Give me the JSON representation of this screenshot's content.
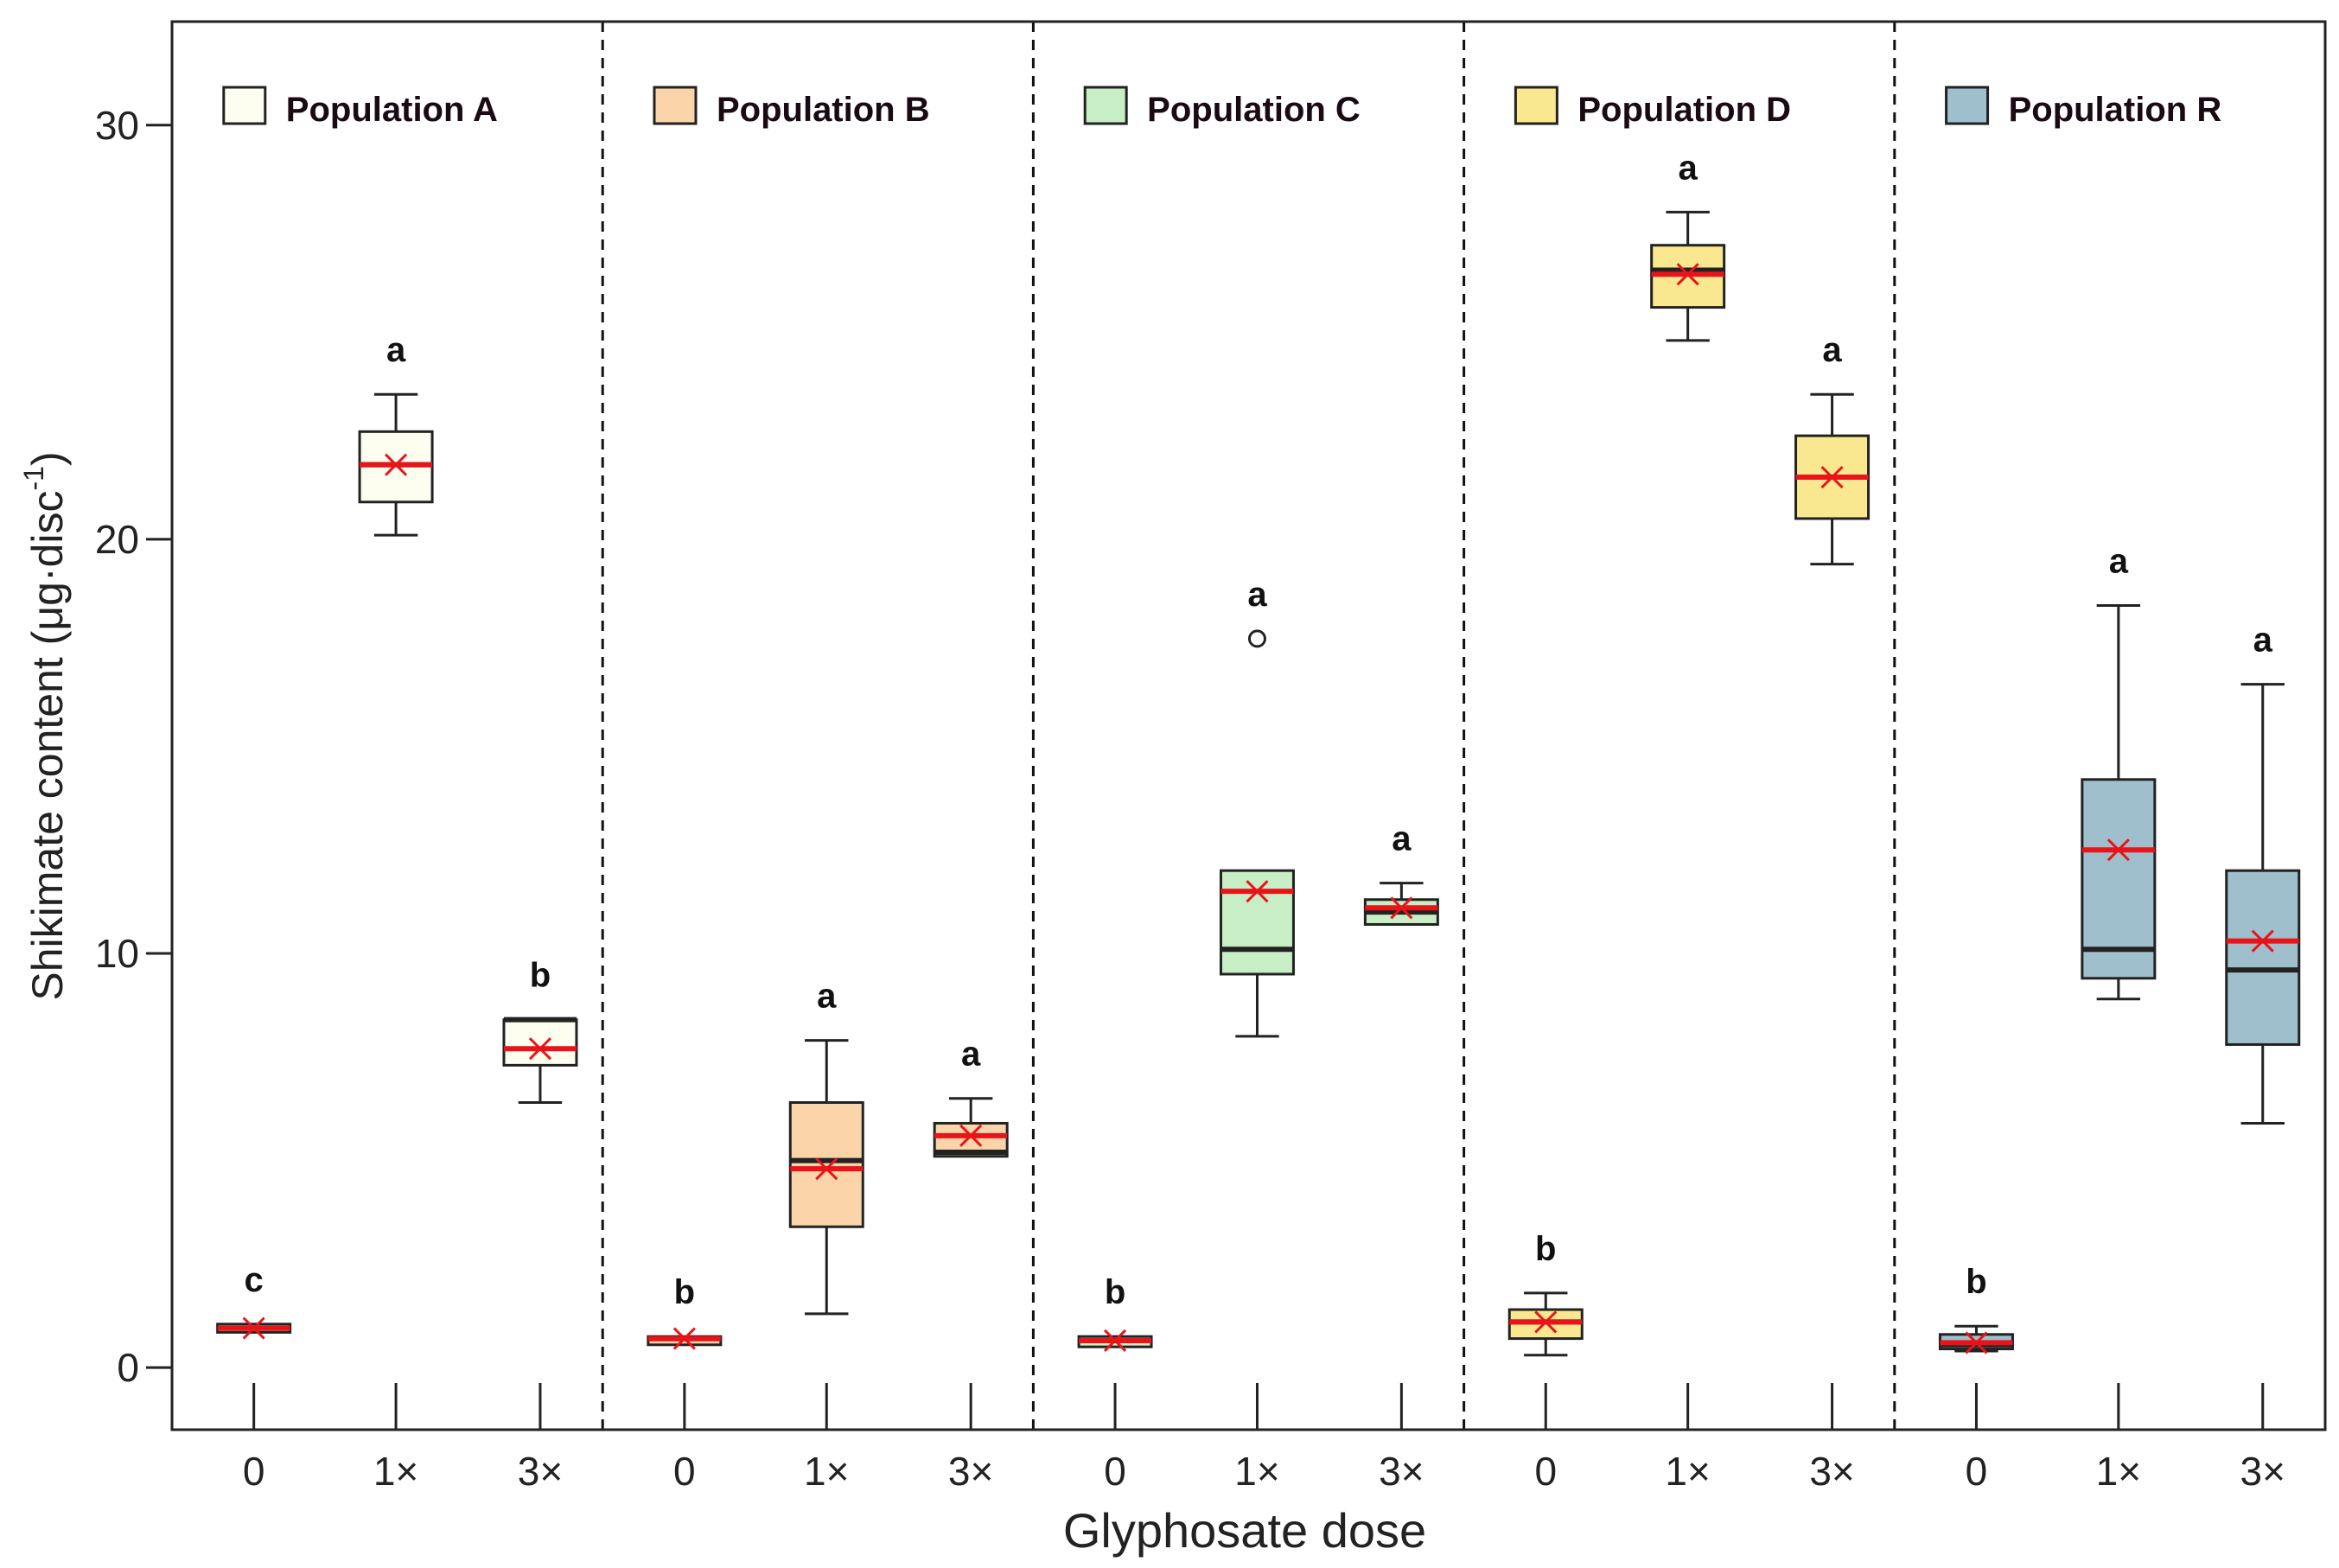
{
  "chart_data": {
    "type": "box",
    "ylabel": "Shikimate content (μg·disc",
    "ylabel_sup": "-1",
    "ylabel_close": ")",
    "xlabel": "Glyphosate dose",
    "ylim": [
      -1.5,
      32.5
    ],
    "yticks": [
      0,
      10,
      20,
      30
    ],
    "doses": [
      "0",
      "1×",
      "3×"
    ],
    "colors": {
      "median": "#222222",
      "mean": "#e8141a",
      "whisker": "#222222"
    },
    "groups": [
      {
        "name": "Population A",
        "color": "#fdfdf0",
        "boxes": [
          {
            "dose": "0",
            "min": 0.85,
            "q1": 0.85,
            "median": 0.95,
            "q3": 1.05,
            "max": 1.05,
            "mean": 0.95,
            "letter": "c"
          },
          {
            "dose": "1×",
            "min": 20.1,
            "q1": 20.9,
            "median": 21.8,
            "q3": 22.6,
            "max": 23.5,
            "mean": 21.8,
            "letter": "a"
          },
          {
            "dose": "3×",
            "min": 6.4,
            "q1": 7.3,
            "median": 8.4,
            "q3": 8.4,
            "max": 8.4,
            "mean": 7.7,
            "letter": "b"
          }
        ]
      },
      {
        "name": "Population B",
        "color": "#fbd5a9",
        "boxes": [
          {
            "dose": "0",
            "min": 0.55,
            "q1": 0.55,
            "median": 0.7,
            "q3": 0.75,
            "max": 0.75,
            "mean": 0.7,
            "letter": "b"
          },
          {
            "dose": "1×",
            "min": 1.3,
            "q1": 3.4,
            "median": 5.0,
            "q3": 6.4,
            "max": 7.9,
            "mean": 4.8,
            "letter": "a"
          },
          {
            "dose": "3×",
            "min": 5.1,
            "q1": 5.1,
            "median": 5.2,
            "q3": 5.9,
            "max": 6.5,
            "mean": 5.6,
            "letter": "a"
          }
        ]
      },
      {
        "name": "Population C",
        "color": "#c7eec4",
        "boxes": [
          {
            "dose": "0",
            "min": 0.5,
            "q1": 0.5,
            "median": 0.65,
            "q3": 0.75,
            "max": 0.75,
            "mean": 0.65,
            "letter": "b"
          },
          {
            "dose": "1×",
            "min": 8.0,
            "q1": 9.5,
            "median": 10.1,
            "q3": 12.0,
            "max": 12.0,
            "mean": 11.5,
            "outliers": [
              17.6
            ],
            "letter": "a"
          },
          {
            "dose": "3×",
            "min": 10.7,
            "q1": 10.7,
            "median": 11.0,
            "q3": 11.3,
            "max": 11.7,
            "mean": 11.1,
            "letter": "a"
          }
        ]
      },
      {
        "name": "Population D",
        "color": "#f9e88f",
        "boxes": [
          {
            "dose": "0",
            "min": 0.3,
            "q1": 0.7,
            "median": 1.1,
            "q3": 1.4,
            "max": 1.8,
            "mean": 1.1,
            "letter": "b"
          },
          {
            "dose": "1×",
            "min": 24.8,
            "q1": 25.6,
            "median": 26.5,
            "q3": 27.1,
            "max": 27.9,
            "mean": 26.4,
            "letter": "a"
          },
          {
            "dose": "3×",
            "min": 19.4,
            "q1": 20.5,
            "median": 21.5,
            "q3": 22.5,
            "max": 23.5,
            "mean": 21.5,
            "letter": "a"
          }
        ]
      },
      {
        "name": "Population R",
        "color": "#9fbfcc",
        "boxes": [
          {
            "dose": "0",
            "min": 0.4,
            "q1": 0.45,
            "median": 0.55,
            "q3": 0.8,
            "max": 1.0,
            "mean": 0.6,
            "letter": "b"
          },
          {
            "dose": "1×",
            "min": 8.9,
            "q1": 9.4,
            "median": 10.1,
            "q3": 14.2,
            "max": 18.4,
            "mean": 12.5,
            "letter": "a"
          },
          {
            "dose": "3×",
            "min": 5.9,
            "q1": 7.8,
            "median": 9.6,
            "q3": 12.0,
            "max": 16.5,
            "mean": 10.3,
            "letter": "a"
          }
        ]
      }
    ]
  }
}
